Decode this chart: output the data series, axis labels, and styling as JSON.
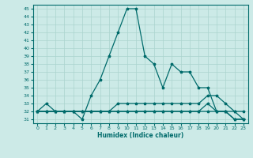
{
  "xlabel": "Humidex (Indice chaleur)",
  "xlim": [
    -0.5,
    23.5
  ],
  "ylim": [
    30.5,
    45.5
  ],
  "yticks": [
    31,
    32,
    33,
    34,
    35,
    36,
    37,
    38,
    39,
    40,
    41,
    42,
    43,
    44,
    45
  ],
  "xticks": [
    0,
    1,
    2,
    3,
    4,
    5,
    6,
    7,
    8,
    9,
    10,
    11,
    12,
    13,
    14,
    15,
    16,
    17,
    18,
    19,
    20,
    21,
    22,
    23
  ],
  "background_color": "#cceae7",
  "grid_color": "#aad4ce",
  "line_color": "#006b6b",
  "line1": {
    "x": [
      0,
      1,
      2,
      3,
      4,
      5,
      6,
      7,
      8,
      9,
      10,
      11,
      12,
      13,
      14,
      15,
      16,
      17,
      18,
      19,
      20,
      21,
      22,
      23
    ],
    "y": [
      32,
      32,
      32,
      32,
      32,
      32,
      32,
      32,
      32,
      32,
      32,
      32,
      32,
      32,
      32,
      32,
      32,
      32,
      32,
      32,
      32,
      32,
      32,
      31
    ]
  },
  "line2": {
    "x": [
      0,
      1,
      2,
      3,
      4,
      5,
      6,
      7,
      8,
      9,
      10,
      11,
      12,
      13,
      14,
      15,
      16,
      17,
      18,
      19,
      20,
      21,
      22,
      23
    ],
    "y": [
      32,
      32,
      32,
      32,
      32,
      32,
      32,
      32,
      32,
      32,
      32,
      32,
      32,
      32,
      32,
      32,
      32,
      32,
      32,
      33,
      32,
      32,
      31,
      31
    ]
  },
  "line3": {
    "x": [
      0,
      1,
      2,
      3,
      4,
      5,
      6,
      7,
      8,
      9,
      10,
      11,
      12,
      13,
      14,
      15,
      16,
      17,
      18,
      19,
      20,
      21,
      22,
      23
    ],
    "y": [
      32,
      32,
      32,
      32,
      32,
      32,
      32,
      32,
      32,
      33,
      33,
      33,
      33,
      33,
      33,
      33,
      33,
      33,
      33,
      34,
      34,
      33,
      32,
      32
    ]
  },
  "line4": {
    "x": [
      0,
      1,
      2,
      3,
      4,
      5,
      6,
      7,
      8,
      9,
      10,
      11,
      12,
      13,
      14,
      15,
      16,
      17,
      18,
      19,
      20,
      21,
      22,
      23
    ],
    "y": [
      32,
      33,
      32,
      32,
      32,
      31,
      34,
      36,
      39,
      42,
      45,
      45,
      39,
      38,
      35,
      38,
      37,
      37,
      35,
      35,
      32,
      32,
      31,
      31
    ]
  }
}
